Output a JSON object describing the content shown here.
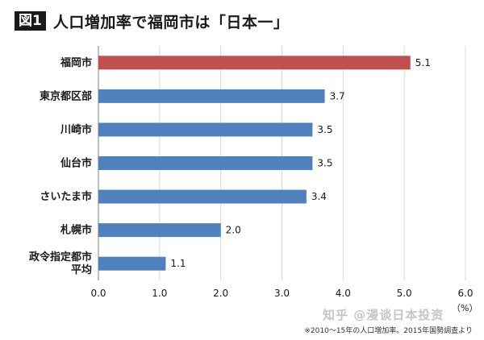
{
  "figure": {
    "badge": "図1",
    "title": "人口増加率で福岡市は「日本一」"
  },
  "chart_data": {
    "type": "bar",
    "orientation": "horizontal",
    "categories": [
      "福岡市",
      "東京都区部",
      "川崎市",
      "仙台市",
      "さいたま市",
      "札幌市",
      "政令指定都市平均"
    ],
    "category_lines": [
      [
        "福岡市"
      ],
      [
        "東京都区部"
      ],
      [
        "川崎市"
      ],
      [
        "仙台市"
      ],
      [
        "さいたま市"
      ],
      [
        "札幌市"
      ],
      [
        "政令指定都市",
        "平均"
      ]
    ],
    "values": [
      5.1,
      3.7,
      3.5,
      3.5,
      3.4,
      2.0,
      1.1
    ],
    "value_labels": [
      "5.1",
      "3.7",
      "3.5",
      "3.5",
      "3.4",
      "2.0",
      "1.1"
    ],
    "highlight_index": 0,
    "colors": {
      "highlight": "#c0504d",
      "default": "#4f81bd",
      "grid": "#d9d9d9"
    },
    "xlim": [
      0,
      6.0
    ],
    "x_ticks": [
      "0.0",
      "1.0",
      "2.0",
      "3.0",
      "4.0",
      "5.0",
      "6.0"
    ],
    "x_unit": "（%）",
    "grid": true
  },
  "source_note": "※2010～15年の人口増加率。2015年国勢調査より",
  "watermark": "知乎 @漫谈日本投资"
}
